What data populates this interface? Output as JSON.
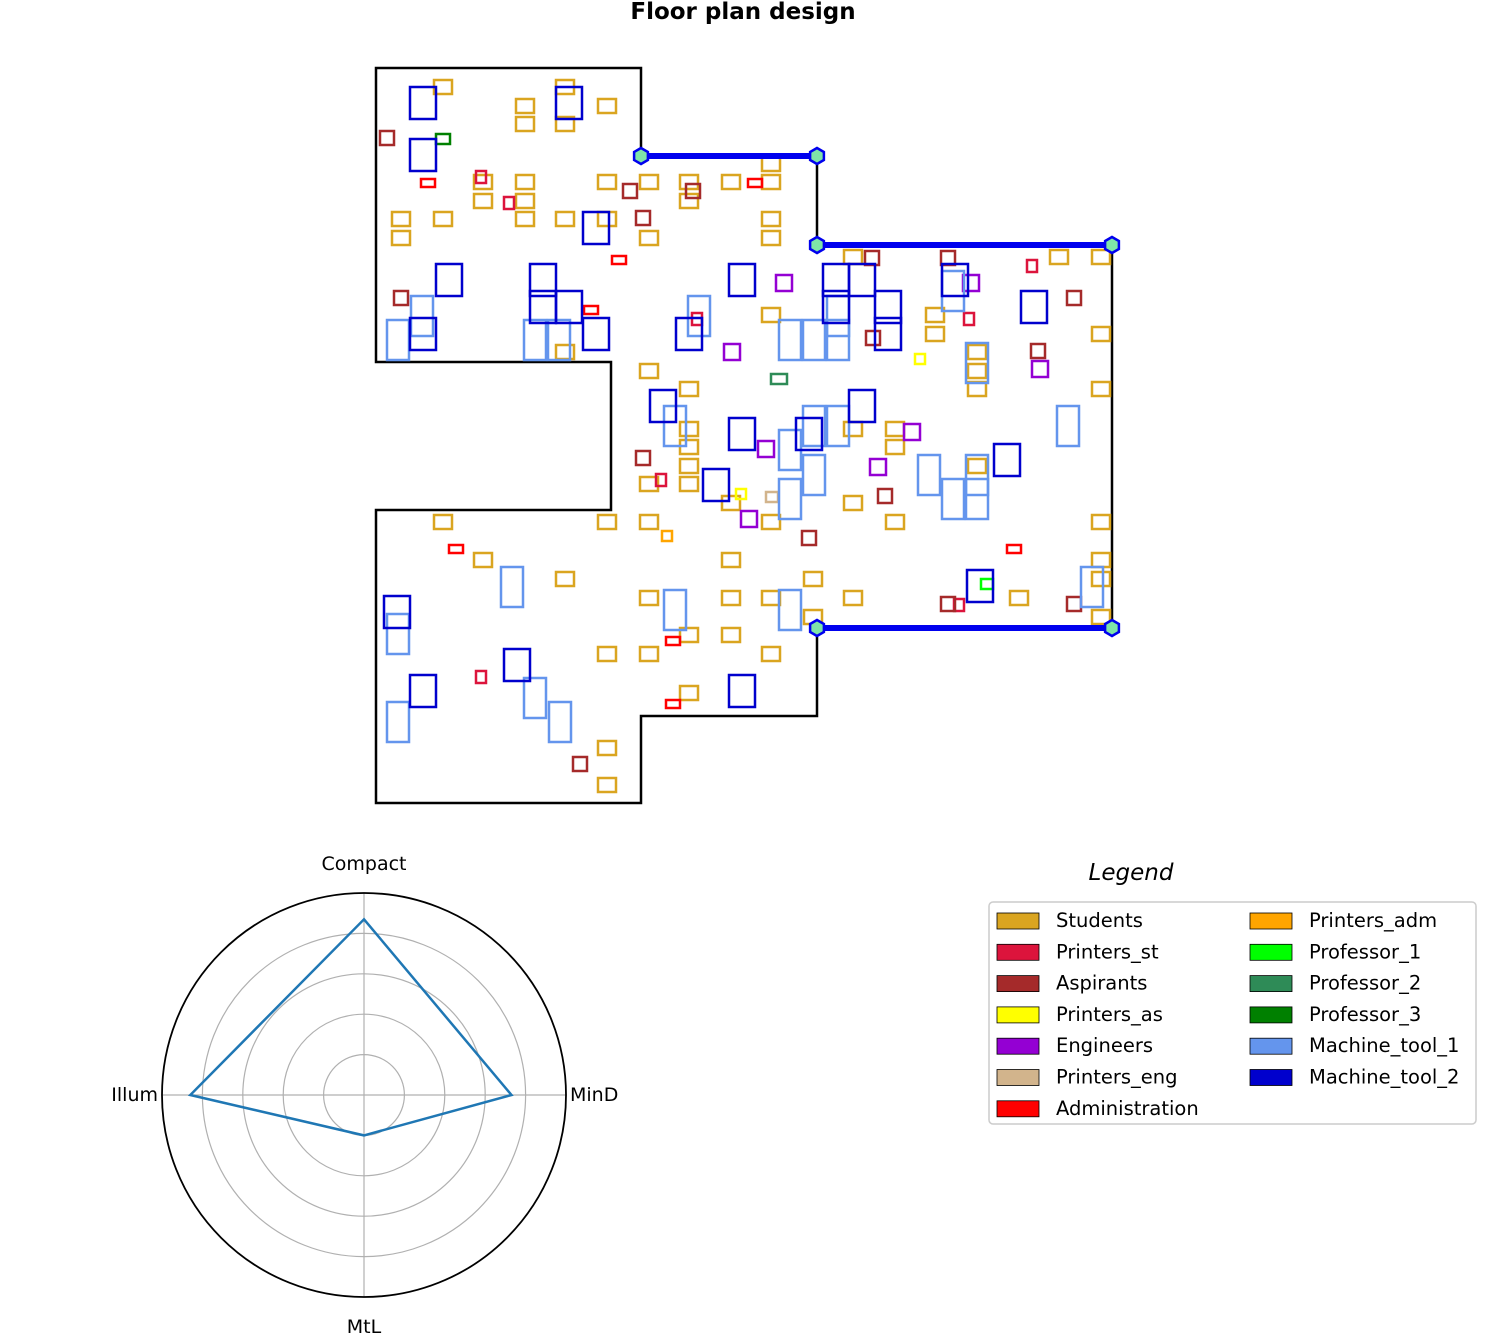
{
  "title": "Floor plan design",
  "legend": {
    "title": "Legend",
    "items": [
      {
        "label": "Students",
        "color": "#DAA520"
      },
      {
        "label": "Printers_st",
        "color": "#DC143C"
      },
      {
        "label": "Aspirants",
        "color": "#A52A2A"
      },
      {
        "label": "Printers_as",
        "color": "#FFFF00"
      },
      {
        "label": "Engineers",
        "color": "#9400D3"
      },
      {
        "label": "Printers_eng",
        "color": "#D2B48C"
      },
      {
        "label": "Administration",
        "color": "#FF0000"
      },
      {
        "label": "Printers_adm",
        "color": "#FFA500"
      },
      {
        "label": "Professor_1",
        "color": "#00FF00"
      },
      {
        "label": "Professor_2",
        "color": "#2E8B57"
      },
      {
        "label": "Professor_3",
        "color": "#008000"
      },
      {
        "label": "Machine_tool_1",
        "color": "#6495ED"
      },
      {
        "label": "Machine_tool_2",
        "color": "#0000CD"
      }
    ]
  },
  "radar": {
    "axes": [
      "Compact",
      "MinD",
      "MtL",
      "Illum"
    ],
    "values": [
      0.87,
      0.73,
      0.2,
      0.86
    ],
    "rmax": 1.0,
    "rings": [
      0.2,
      0.4,
      0.6,
      0.8
    ],
    "line_color": "#1f77b4"
  },
  "colors": {
    "outline": "#000000",
    "wall": "#0000EE",
    "node_fill": "#7FE5A8",
    "grid": "#B0B0B0"
  }
}
